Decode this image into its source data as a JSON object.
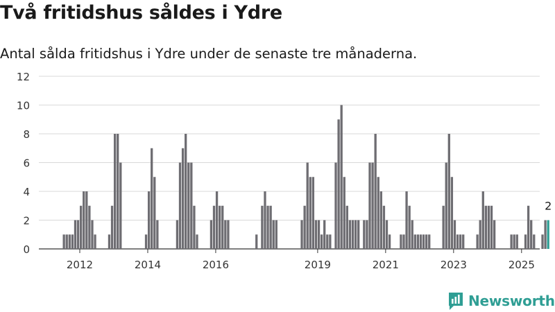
{
  "title": "Två fritidshus såldes i Ydre",
  "subtitle": "Antal sålda fritidshus i Ydre under de senaste tre månaderna.",
  "brand": {
    "name": "Newsworthy",
    "logo_icon": "newsworthy-chart-icon",
    "color": "#2f9e94"
  },
  "chart_data": {
    "type": "bar",
    "title": "",
    "xlabel": "",
    "ylabel": "",
    "ylim": [
      0,
      12
    ],
    "y_ticks": [
      "0",
      "2",
      "4",
      "6",
      "8",
      "10",
      "12"
    ],
    "x_ticks": [
      "2012",
      "2014",
      "2016",
      "2019",
      "2021",
      "2023",
      "2025"
    ],
    "grid": true,
    "bar_color": "#6e6d72",
    "highlight_color": "#2f9e94",
    "start": "2012-01",
    "highlight_label": "2",
    "values": [
      1,
      1,
      1,
      1,
      2,
      2,
      3,
      4,
      4,
      3,
      2,
      1,
      0,
      0,
      0,
      0,
      1,
      3,
      8,
      8,
      6,
      0,
      0,
      0,
      0,
      0,
      0,
      0,
      0,
      1,
      4,
      7,
      5,
      2,
      0,
      0,
      0,
      0,
      0,
      0,
      2,
      6,
      7,
      8,
      6,
      6,
      3,
      1,
      0,
      0,
      0,
      0,
      2,
      3,
      4,
      3,
      3,
      2,
      2,
      0,
      0,
      0,
      0,
      0,
      0,
      0,
      0,
      0,
      1,
      0,
      3,
      4,
      3,
      3,
      2,
      2,
      0,
      0,
      0,
      0,
      0,
      0,
      0,
      0,
      2,
      3,
      6,
      5,
      5,
      2,
      2,
      1,
      2,
      1,
      1,
      0,
      6,
      9,
      10,
      5,
      3,
      2,
      2,
      2,
      2,
      0,
      2,
      2,
      6,
      6,
      8,
      5,
      4,
      3,
      2,
      1,
      0,
      0,
      0,
      1,
      1,
      4,
      3,
      2,
      1,
      1,
      1,
      1,
      1,
      1,
      0,
      0,
      0,
      0,
      3,
      6,
      8,
      5,
      2,
      1,
      1,
      1,
      0,
      0,
      0,
      0,
      1,
      2,
      4,
      3,
      3,
      3,
      2,
      0,
      0,
      0,
      0,
      0,
      1,
      1,
      1,
      0,
      0,
      1,
      3,
      2,
      1,
      0,
      0,
      1,
      2,
      2
    ]
  }
}
